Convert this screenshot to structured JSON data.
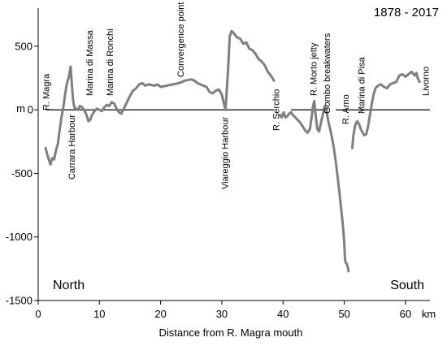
{
  "chart_data": {
    "type": "line",
    "period": "1878 - 2017",
    "xlabel": "Distance from R. Magra mouth",
    "x_unit": "km",
    "ylabel": "m",
    "xlim": [
      0,
      64
    ],
    "ylim": [
      -1500,
      800
    ],
    "x_ticks": [
      0,
      10,
      20,
      30,
      40,
      50,
      60
    ],
    "y_ticks": [
      -1500,
      -1000,
      -500,
      0,
      500
    ],
    "y_tick_labels": [
      "-1500",
      "-1000",
      "-500",
      "0",
      "500"
    ],
    "region_labels": {
      "left": "North",
      "right": "South"
    },
    "colors": {
      "line": "#7f7f7f",
      "axis": "#000000"
    },
    "locations": [
      {
        "label": "R. Magra",
        "x": 1.8
      },
      {
        "label": "Carrara Harbour",
        "x": 6.0
      },
      {
        "label": "Marina di Massa",
        "x": 8.9
      },
      {
        "label": "Marina di Ronchi",
        "x": 12.2
      },
      {
        "label": "Convergence point",
        "x": 23.8
      },
      {
        "label": "Viareggio Harbour",
        "x": 31.0
      },
      {
        "label": "R. Serchio",
        "x": 39.4
      },
      {
        "label": "R. Morto jetty",
        "x": 45.5
      },
      {
        "label": "Gombo breakwaters",
        "x": 47.7
      },
      {
        "label": "R. Arno",
        "x": 50.7
      },
      {
        "label": "Marina di Pisa",
        "x": 53.3
      },
      {
        "label": "Livorno",
        "x": 63.8
      }
    ],
    "series": [
      {
        "segments": [
          [
            [
              1.2,
              -300
            ],
            [
              1.6,
              -370
            ],
            [
              2.0,
              -430
            ],
            [
              2.3,
              -380
            ],
            [
              2.6,
              -390
            ],
            [
              2.9,
              -320
            ],
            [
              3.2,
              -270
            ],
            [
              3.5,
              -160
            ],
            [
              3.8,
              -60
            ],
            [
              4.1,
              20
            ],
            [
              4.4,
              120
            ],
            [
              4.7,
              210
            ],
            [
              5.0,
              260
            ],
            [
              5.3,
              340
            ],
            [
              5.5,
              200
            ],
            [
              5.7,
              80
            ],
            [
              5.9,
              20
            ],
            [
              6.2,
              10
            ],
            [
              6.5,
              0
            ],
            [
              6.8,
              30
            ],
            [
              7.2,
              20
            ],
            [
              7.6,
              -10
            ],
            [
              7.9,
              -40
            ],
            [
              8.2,
              -90
            ],
            [
              8.5,
              -80
            ],
            [
              8.8,
              -40
            ],
            [
              9.2,
              -10
            ],
            [
              9.6,
              10
            ],
            [
              10.0,
              0
            ],
            [
              10.4,
              -10
            ],
            [
              10.8,
              20
            ],
            [
              11.2,
              40
            ],
            [
              11.6,
              30
            ],
            [
              12.0,
              60
            ],
            [
              12.4,
              50
            ],
            [
              12.8,
              10
            ],
            [
              13.2,
              -20
            ],
            [
              13.6,
              -30
            ],
            [
              14.0,
              10
            ],
            [
              14.5,
              60
            ],
            [
              15.0,
              110
            ],
            [
              15.5,
              150
            ],
            [
              16.0,
              170
            ],
            [
              16.5,
              200
            ],
            [
              17.0,
              210
            ],
            [
              17.5,
              190
            ],
            [
              18.0,
              200
            ],
            [
              19.0,
              190
            ],
            [
              19.5,
              200
            ],
            [
              20.0,
              180
            ],
            [
              21.0,
              190
            ],
            [
              22.0,
              200
            ],
            [
              23.0,
              210
            ],
            [
              24.0,
              230
            ],
            [
              25.0,
              240
            ],
            [
              25.5,
              230
            ],
            [
              26.0,
              210
            ],
            [
              27.0,
              190
            ],
            [
              27.5,
              180
            ],
            [
              28.0,
              140
            ],
            [
              28.5,
              130
            ],
            [
              29.0,
              150
            ],
            [
              29.5,
              160
            ],
            [
              30.0,
              120
            ],
            [
              30.4,
              40
            ],
            [
              30.6,
              0
            ],
            [
              31.0,
              300
            ],
            [
              31.3,
              580
            ],
            [
              31.6,
              620
            ],
            [
              32.0,
              600
            ],
            [
              32.5,
              570
            ],
            [
              33.0,
              560
            ],
            [
              33.5,
              520
            ],
            [
              34.0,
              530
            ],
            [
              34.5,
              480
            ],
            [
              35.0,
              470
            ],
            [
              35.5,
              440
            ],
            [
              36.0,
              400
            ],
            [
              36.5,
              380
            ],
            [
              37.0,
              350
            ],
            [
              37.5,
              300
            ],
            [
              38.0,
              270
            ],
            [
              38.5,
              230
            ]
          ],
          [
            [
              39.5,
              -40
            ],
            [
              39.8,
              -60
            ],
            [
              40.1,
              -20
            ],
            [
              40.4,
              -60
            ],
            [
              40.7,
              -50
            ],
            [
              41.0,
              -30
            ],
            [
              41.3,
              -20
            ],
            [
              41.6,
              -40
            ],
            [
              42.0,
              -60
            ],
            [
              42.4,
              -80
            ],
            [
              42.8,
              -100
            ],
            [
              43.2,
              -130
            ],
            [
              43.6,
              -160
            ],
            [
              44.0,
              -180
            ],
            [
              44.4,
              -150
            ],
            [
              44.7,
              -50
            ],
            [
              44.9,
              30
            ],
            [
              45.1,
              70
            ],
            [
              45.3,
              -30
            ],
            [
              45.6,
              -150
            ],
            [
              45.9,
              -170
            ],
            [
              46.2,
              -100
            ],
            [
              46.5,
              -40
            ],
            [
              46.8,
              30
            ],
            [
              47.1,
              -10
            ],
            [
              47.4,
              -90
            ],
            [
              47.7,
              -150
            ],
            [
              48.0,
              -220
            ],
            [
              48.3,
              -300
            ],
            [
              48.6,
              -400
            ],
            [
              48.9,
              -520
            ],
            [
              49.2,
              -640
            ],
            [
              49.5,
              -780
            ],
            [
              49.8,
              -920
            ],
            [
              50.0,
              -1050
            ],
            [
              50.1,
              -1150
            ],
            [
              50.2,
              -1200
            ],
            [
              50.4,
              -1210
            ],
            [
              50.6,
              -1240
            ],
            [
              50.7,
              -1270
            ]
          ],
          [
            [
              51.3,
              -300
            ],
            [
              51.5,
              -200
            ],
            [
              51.8,
              -120
            ],
            [
              52.1,
              -90
            ],
            [
              52.4,
              -110
            ],
            [
              52.7,
              -150
            ],
            [
              53.0,
              -180
            ],
            [
              53.3,
              -200
            ],
            [
              53.6,
              -190
            ],
            [
              53.9,
              -130
            ],
            [
              54.2,
              -40
            ],
            [
              54.5,
              50
            ],
            [
              54.8,
              120
            ],
            [
              55.1,
              170
            ],
            [
              55.5,
              190
            ],
            [
              56.0,
              200
            ],
            [
              56.5,
              180
            ],
            [
              57.0,
              170
            ],
            [
              57.5,
              200
            ],
            [
              58.0,
              210
            ],
            [
              58.5,
              220
            ],
            [
              59.0,
              270
            ],
            [
              59.5,
              280
            ],
            [
              60.0,
              260
            ],
            [
              60.5,
              280
            ],
            [
              61.0,
              300
            ],
            [
              61.5,
              270
            ],
            [
              61.8,
              290
            ],
            [
              62.0,
              250
            ],
            [
              62.3,
              220
            ]
          ]
        ]
      }
    ]
  }
}
